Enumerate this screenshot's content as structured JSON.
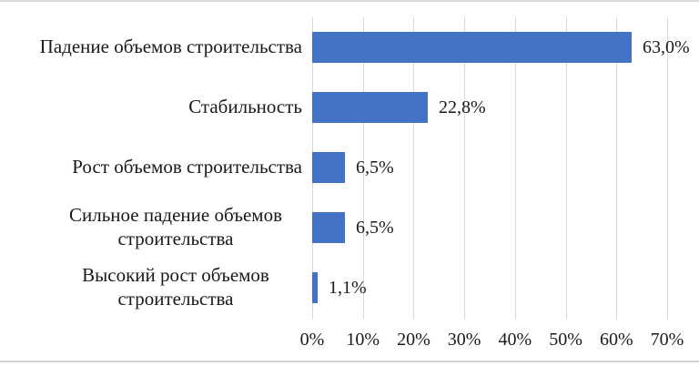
{
  "chart_data": {
    "type": "bar",
    "orientation": "horizontal",
    "title": "",
    "xlabel": "",
    "ylabel": "",
    "categories": [
      "Падение объемов строительства",
      "Стабильность",
      "Рост объемов строительства",
      "Сильное падение объемов строительства",
      "Высокий рост объемов строительства"
    ],
    "values": [
      63.0,
      22.8,
      6.5,
      6.5,
      1.1
    ],
    "data_labels": [
      "63,0%",
      "22,8%",
      "6,5%",
      "6,5%",
      "1,1%"
    ],
    "x_tick_labels": [
      "0%",
      "10%",
      "20%",
      "30%",
      "40%",
      "50%",
      "60%",
      "70%"
    ],
    "xlim": [
      0,
      70
    ],
    "grid": "vertical-gridlines-on",
    "legend_position": "none",
    "bar_color": "#4472C4",
    "gridline_color": "#D9D9D9",
    "text_color": "#1A1A1A",
    "background_color": "#FFFFFF"
  }
}
